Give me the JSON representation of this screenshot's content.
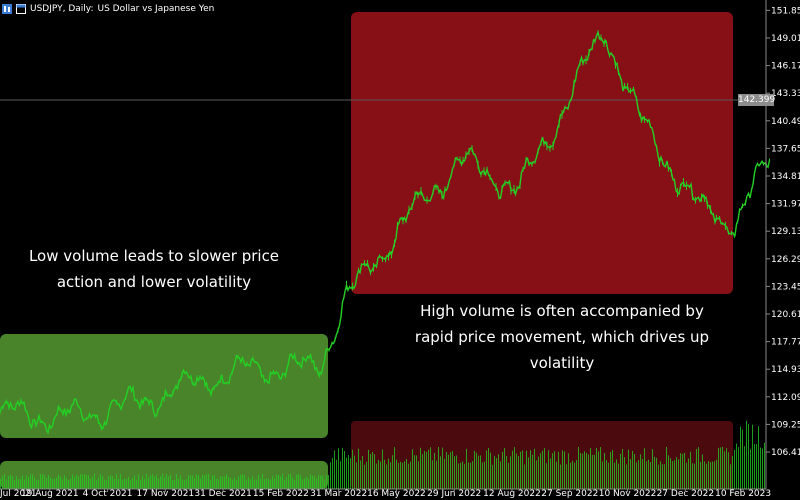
{
  "header": {
    "symbol": "USDJPY, Daily:",
    "description": "US Dollar vs Japanese Yen"
  },
  "annotations": {
    "low_volume": "Low volume leads to slower price action and lower volatility",
    "high_volume": "High volume is often accompanied by rapid price movement, which drives up volatility"
  },
  "current_price": "142.399",
  "colors": {
    "background": "#000000",
    "candles": "#24d024",
    "low_zone": "#4d8a2c",
    "high_zone": "#8b0f17",
    "high_volume_zone": "#4a0a0e"
  },
  "icons": [
    "chart-type-icon",
    "window-icon"
  ],
  "chart_data": {
    "type": "line",
    "symbol": "USDJPY",
    "timeframe": "Daily",
    "ylim": [
      106.0,
      152.3
    ],
    "y_ticks": [
      "151.850",
      "149.010",
      "146.170",
      "143.330",
      "140.490",
      "137.650",
      "134.810",
      "131.970",
      "129.130",
      "126.290",
      "123.450",
      "120.610",
      "117.770",
      "114.930",
      "112.090",
      "109.250",
      "106.410"
    ],
    "x_ticks": [
      "Jul 2021",
      "19 Aug 2021",
      "4 Oct 2021",
      "17 Nov 2021",
      "31 Dec 2021",
      "15 Feb 2022",
      "31 Mar 2022",
      "16 May 2022",
      "29 Jun 2022",
      "12 Aug 2022",
      "27 Sep 2022",
      "10 Nov 2022",
      "27 Dec 2022",
      "10 Feb 2023"
    ],
    "series": [
      {
        "x": [
          "Jul 2021",
          "19 Aug 2021",
          "4 Oct 2021",
          "17 Nov 2021",
          "31 Dec 2021",
          "15 Feb 2022",
          "1 Mar 2022",
          "31 Mar 2022",
          "16 May 2022",
          "29 Jun 2022",
          "12 Aug 2022",
          "27 Sep 2022",
          "21 Oct 2022",
          "10 Nov 2022",
          "27 Dec 2022",
          "10 Feb 2023",
          "1 Mar 2023"
        ],
        "values": [
          110.5,
          110.0,
          111.5,
          114.0,
          115.0,
          115.0,
          115.5,
          122.0,
          129.5,
          136.5,
          133.5,
          145.0,
          150.0,
          140.5,
          131.5,
          130.0,
          136.5
        ]
      }
    ],
    "volume_relative": {
      "low_period": 0.2,
      "high_period": 0.55,
      "end": 0.9
    }
  }
}
